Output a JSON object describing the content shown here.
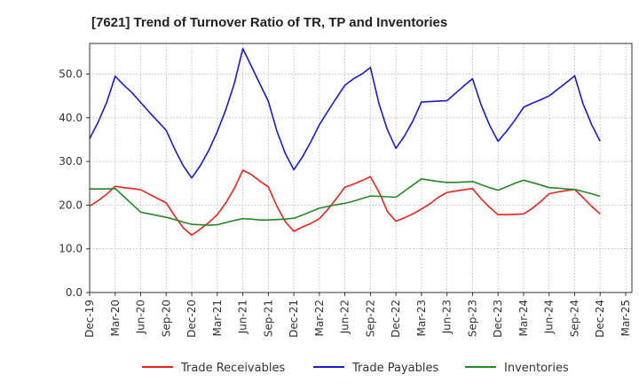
{
  "chart_data": {
    "type": "line",
    "title": "[7621]  Trend of Turnover Ratio of TR, TP and Inventories",
    "xlabel": "",
    "ylabel": "",
    "ylim": [
      0,
      57
    ],
    "y_ticks": [
      "0.0",
      "10.0",
      "20.0",
      "30.0",
      "40.0",
      "50.0"
    ],
    "y_tick_values": [
      0,
      10,
      20,
      30,
      40,
      50
    ],
    "x_tick_labels": [
      "Dec-19",
      "Mar-20",
      "Jun-20",
      "Sep-20",
      "Dec-20",
      "Mar-21",
      "Jun-21",
      "Sep-21",
      "Dec-21",
      "Mar-22",
      "Jun-22",
      "Sep-22",
      "Dec-22",
      "Mar-23",
      "Jun-23",
      "Sep-23",
      "Dec-23",
      "Mar-24",
      "Jun-24",
      "Sep-24",
      "Dec-24",
      "Mar-25"
    ],
    "x": [
      "Dec-19",
      "Jan-20",
      "Feb-20",
      "Mar-20",
      "Apr-20",
      "May-20",
      "Jun-20",
      "Jul-20",
      "Aug-20",
      "Sep-20",
      "Oct-20",
      "Nov-20",
      "Dec-20",
      "Jan-21",
      "Feb-21",
      "Mar-21",
      "Apr-21",
      "May-21",
      "Jun-21",
      "Jul-21",
      "Aug-21",
      "Sep-21",
      "Oct-21",
      "Nov-21",
      "Dec-21",
      "Jan-22",
      "Feb-22",
      "Mar-22",
      "Apr-22",
      "May-22",
      "Jun-22",
      "Jul-22",
      "Aug-22",
      "Sep-22",
      "Oct-22",
      "Nov-22",
      "Dec-22",
      "Jan-23",
      "Feb-23",
      "Mar-23",
      "Apr-23",
      "May-23",
      "Jun-23",
      "Jul-23",
      "Aug-23",
      "Sep-23",
      "Oct-23",
      "Nov-23",
      "Dec-23",
      "Jan-24",
      "Feb-24",
      "Mar-24",
      "Apr-24",
      "May-24",
      "Jun-24",
      "Jul-24",
      "Aug-24",
      "Sep-24",
      "Oct-24",
      "Nov-24",
      "Dec-24"
    ],
    "series": [
      {
        "name": "Trade Receivables",
        "color": "#e8231c",
        "values": [
          19.8,
          21.0,
          22.5,
          24.3,
          24.0,
          23.8,
          23.5,
          22.5,
          21.5,
          20.5,
          17.5,
          14.8,
          13.1,
          14.5,
          16.0,
          17.8,
          20.5,
          23.8,
          28.0,
          27.0,
          25.5,
          24.2,
          19.8,
          16.2,
          14.0,
          15.0,
          15.8,
          16.9,
          19.0,
          21.5,
          24.1,
          24.8,
          25.6,
          26.5,
          23.0,
          18.5,
          16.3,
          17.1,
          18.0,
          19.1,
          20.3,
          21.8,
          22.9,
          23.2,
          23.5,
          23.8,
          21.5,
          19.5,
          17.8,
          17.8,
          17.9,
          18.0,
          19.2,
          20.8,
          22.6,
          23.0,
          23.3,
          23.6,
          21.7,
          19.7,
          18.0
        ]
      },
      {
        "name": "Trade Payables",
        "color": "#1a1acc",
        "values": [
          35.2,
          39.0,
          43.5,
          49.5,
          47.5,
          45.7,
          43.5,
          41.3,
          39.2,
          37.1,
          32.8,
          29.0,
          26.2,
          29.0,
          32.5,
          36.8,
          41.8,
          47.8,
          55.8,
          51.8,
          47.8,
          43.8,
          37.0,
          31.8,
          28.1,
          31.0,
          34.5,
          38.4,
          41.5,
          44.5,
          47.4,
          48.9,
          50.0,
          51.5,
          43.2,
          37.2,
          33.0,
          35.8,
          39.3,
          43.6,
          43.7,
          43.8,
          43.9,
          45.6,
          47.3,
          48.9,
          43.0,
          38.3,
          34.6,
          36.9,
          39.5,
          42.4,
          43.3,
          44.1,
          45.0,
          46.5,
          48.0,
          49.6,
          43.1,
          38.4,
          34.6
        ]
      },
      {
        "name": "Inventories",
        "color": "#238a23",
        "values": [
          23.7,
          23.7,
          23.7,
          23.8,
          22.0,
          20.2,
          18.4,
          18.0,
          17.6,
          17.2,
          16.7,
          16.1,
          15.6,
          15.5,
          15.4,
          15.5,
          16.0,
          16.5,
          16.9,
          16.8,
          16.6,
          16.6,
          16.7,
          16.8,
          17.0,
          17.7,
          18.5,
          19.3,
          19.7,
          20.1,
          20.4,
          20.9,
          21.5,
          22.1,
          22.0,
          21.9,
          21.8,
          23.2,
          24.6,
          26.0,
          25.7,
          25.4,
          25.2,
          25.2,
          25.3,
          25.4,
          24.7,
          24.0,
          23.4,
          24.2,
          25.0,
          25.7,
          25.2,
          24.6,
          24.0,
          23.9,
          23.7,
          23.6,
          23.1,
          22.6,
          22.0
        ]
      }
    ],
    "legend_position": "bottom",
    "grid": "vertical"
  }
}
